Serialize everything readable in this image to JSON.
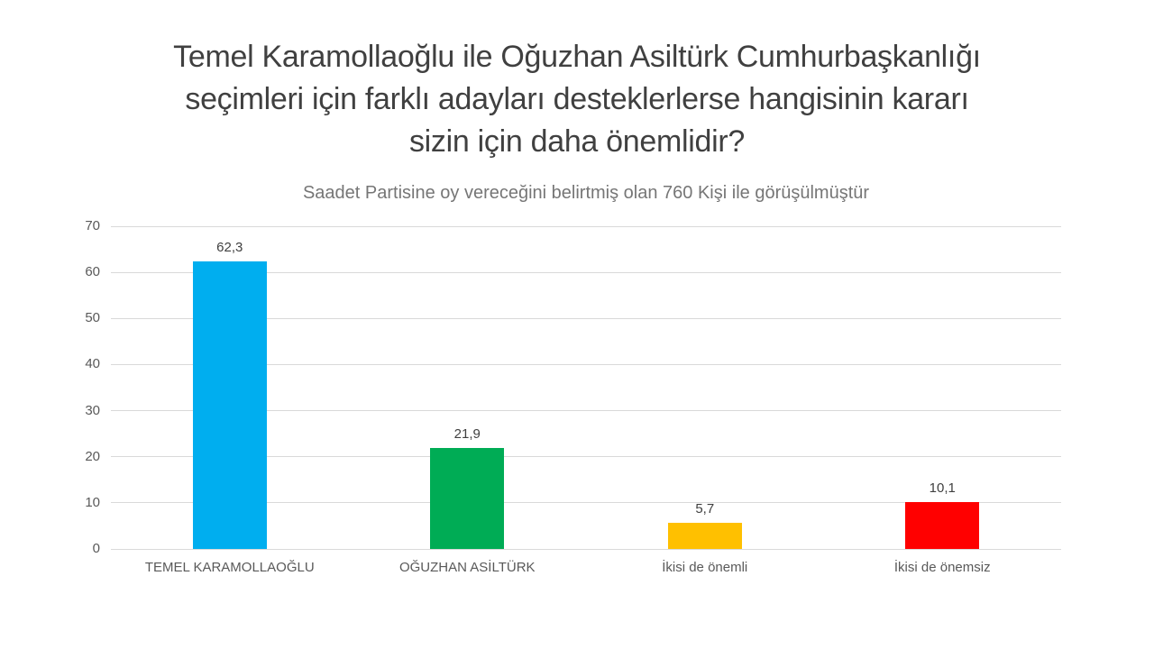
{
  "header": {
    "title_lines": [
      "Temel Karamollaoğlu ile Oğuzhan Asiltürk Cumhurbaşkanlığı",
      "seçimleri için farklı adayları desteklerlerse hangisinin kararı",
      "sizin için daha önemlidir?"
    ],
    "subtitle": "Saadet Partisine oy vereceğini belirtmiş olan 760 Kişi ile görüşülmüştür"
  },
  "chart_data": {
    "type": "bar",
    "title": "Saadet Partisine oy vereceğini belirtmiş olan 760 Kişi ile görüşülmüştür",
    "categories": [
      "TEMEL KARAMOLLAOĞLU",
      "OĞUZHAN ASİLTÜRK",
      "İkisi de önemli",
      "İkisi de önemsiz"
    ],
    "values": [
      62.3,
      21.9,
      5.7,
      10.1
    ],
    "value_labels": [
      "62,3",
      "21,9",
      "5,7",
      "10,1"
    ],
    "bar_colors": [
      "#00AEEF",
      "#00AC55",
      "#FFC000",
      "#FF0000"
    ],
    "xlabel": "",
    "ylabel": "",
    "ylim": [
      0,
      70
    ],
    "yticks": [
      0,
      10,
      20,
      30,
      40,
      50,
      60,
      70
    ],
    "grid": true,
    "legend": false
  },
  "colors": {
    "background": "#FFFFFF",
    "title_text": "#404040",
    "subtitle_text": "#767676",
    "axis_text": "#595959",
    "value_label_text": "#404040",
    "gridline": "#D9D9D9"
  }
}
